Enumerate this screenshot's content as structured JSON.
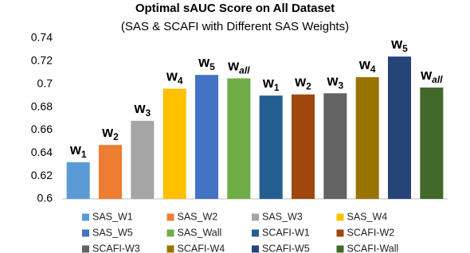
{
  "chart_data": {
    "type": "bar",
    "title": "Optimal sAUC Score on All  Dataset",
    "subtitle": "(SAS & SCAFI with Different SAS Weights)",
    "categories": [
      "SAS_W1",
      "SAS_W2",
      "SAS_W3",
      "SAS_W4",
      "SAS_W5",
      "SAS_Wall",
      "SCAFI-W1",
      "SCAFI-W2",
      "SCAFI-W3",
      "SCAFI-W4",
      "SCAFI-W5",
      "SCAFI-Wall"
    ],
    "values": [
      0.632,
      0.647,
      0.668,
      0.696,
      0.708,
      0.705,
      0.69,
      0.691,
      0.692,
      0.706,
      0.724,
      0.697
    ],
    "colors": [
      "#5b9bd5",
      "#ed7d31",
      "#a5a5a5",
      "#ffc000",
      "#4472c4",
      "#70ad47",
      "#255e91",
      "#9e480e",
      "#636363",
      "#997300",
      "#264478",
      "#43682b"
    ],
    "bar_labels": [
      {
        "text": "w",
        "sub": "1"
      },
      {
        "text": "w",
        "sub": "2"
      },
      {
        "text": "w",
        "sub": "3"
      },
      {
        "text": "w",
        "sub": "4"
      },
      {
        "text": "w",
        "sub": "5"
      },
      {
        "text": "w",
        "sub": "all"
      },
      {
        "text": "w",
        "sub": "1"
      },
      {
        "text": "w",
        "sub": "2"
      },
      {
        "text": "w",
        "sub": "3"
      },
      {
        "text": "w",
        "sub": "4"
      },
      {
        "text": "w",
        "sub": "5"
      },
      {
        "text": "w",
        "sub": "all"
      }
    ],
    "ylim": [
      0.6,
      0.74
    ],
    "yticks": [
      0.6,
      0.62,
      0.64,
      0.66,
      0.68,
      0.7,
      0.72,
      0.74
    ],
    "grid": false
  }
}
